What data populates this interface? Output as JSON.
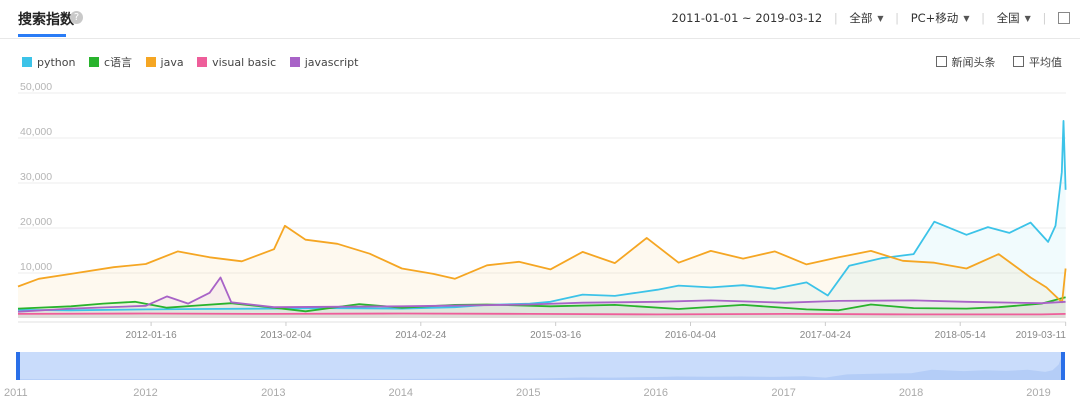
{
  "header": {
    "title": "搜索指数",
    "help_icon": "question-icon",
    "date_range": "2011-01-01 ~ 2019-03-12",
    "source_filter": "全部",
    "device_filter": "PC+移动",
    "region_filter": "全国",
    "export_icon": "external-link-icon"
  },
  "legend": [
    {
      "name": "python",
      "color": "#3cc3e8"
    },
    {
      "name": "c语言",
      "color": "#29b32d"
    },
    {
      "name": "java",
      "color": "#f5a623"
    },
    {
      "name": "visual basic",
      "color": "#ee5e9a"
    },
    {
      "name": "javascript",
      "color": "#a863c7"
    }
  ],
  "options": {
    "news_label": "新闻头条",
    "average_label": "平均值"
  },
  "chart_data": {
    "type": "line",
    "title": "",
    "xlabel": "",
    "ylabel": "",
    "ylim": [
      0,
      50000
    ],
    "y_ticks": [
      "50,000",
      "40,000",
      "30,000",
      "20,000",
      "10,000"
    ],
    "x_range": [
      "2011-01-01",
      "2019-03-12"
    ],
    "x_ticks": [
      "2012-01-16",
      "2013-02-04",
      "2014-02-24",
      "2015-03-16",
      "2016-04-04",
      "2017-04-24",
      "2018-05-14",
      "2019-03-11"
    ],
    "grid": true,
    "series": [
      {
        "name": "python",
        "color": "#3cc3e8",
        "points": [
          [
            "2011-01-01",
            1800
          ],
          [
            "2011-06-01",
            1700
          ],
          [
            "2012-01-01",
            1900
          ],
          [
            "2012-06-01",
            2000
          ],
          [
            "2013-01-01",
            2100
          ],
          [
            "2013-06-01",
            2200
          ],
          [
            "2014-01-01",
            2100
          ],
          [
            "2014-06-01",
            2400
          ],
          [
            "2014-09-01",
            2900
          ],
          [
            "2015-01-01",
            3200
          ],
          [
            "2015-03-01",
            3600
          ],
          [
            "2015-06-01",
            5200
          ],
          [
            "2015-09-01",
            4900
          ],
          [
            "2016-01-01",
            6300
          ],
          [
            "2016-03-01",
            7200
          ],
          [
            "2016-06-01",
            6800
          ],
          [
            "2016-09-01",
            7300
          ],
          [
            "2016-12-01",
            6500
          ],
          [
            "2017-03-01",
            7900
          ],
          [
            "2017-05-01",
            5000
          ],
          [
            "2017-07-01",
            11600
          ],
          [
            "2017-10-01",
            13300
          ],
          [
            "2018-01-01",
            14200
          ],
          [
            "2018-03-01",
            21400
          ],
          [
            "2018-06-01",
            18500
          ],
          [
            "2018-08-01",
            20200
          ],
          [
            "2018-10-01",
            18900
          ],
          [
            "2018-12-01",
            21200
          ],
          [
            "2019-01-20",
            16900
          ],
          [
            "2019-02-10",
            20500
          ],
          [
            "2019-02-28",
            32400
          ],
          [
            "2019-03-05",
            43800
          ],
          [
            "2019-03-11",
            28500
          ]
        ]
      },
      {
        "name": "c语言",
        "color": "#29b32d",
        "points": [
          [
            "2011-01-01",
            2100
          ],
          [
            "2011-06-01",
            2600
          ],
          [
            "2011-09-01",
            3200
          ],
          [
            "2011-12-01",
            3600
          ],
          [
            "2012-03-01",
            2300
          ],
          [
            "2012-06-01",
            2800
          ],
          [
            "2012-09-01",
            3300
          ],
          [
            "2013-01-01",
            2300
          ],
          [
            "2013-04-01",
            1500
          ],
          [
            "2013-09-01",
            3100
          ],
          [
            "2014-01-01",
            2300
          ],
          [
            "2014-06-01",
            2900
          ],
          [
            "2014-09-01",
            3000
          ],
          [
            "2015-03-01",
            2600
          ],
          [
            "2015-09-01",
            2900
          ],
          [
            "2016-03-01",
            2000
          ],
          [
            "2016-09-01",
            2900
          ],
          [
            "2017-03-01",
            1900
          ],
          [
            "2017-06-01",
            1700
          ],
          [
            "2017-09-01",
            3000
          ],
          [
            "2018-01-01",
            2200
          ],
          [
            "2018-06-01",
            2100
          ],
          [
            "2018-09-01",
            2400
          ],
          [
            "2019-01-01",
            3200
          ],
          [
            "2019-03-11",
            4600
          ]
        ]
      },
      {
        "name": "java",
        "color": "#f5a623",
        "points": [
          [
            "2011-01-01",
            7000
          ],
          [
            "2011-03-01",
            8700
          ],
          [
            "2011-06-01",
            9800
          ],
          [
            "2011-10-01",
            11300
          ],
          [
            "2012-01-01",
            12000
          ],
          [
            "2012-04-01",
            14800
          ],
          [
            "2012-07-01",
            13500
          ],
          [
            "2012-10-01",
            12600
          ],
          [
            "2013-01-01",
            15300
          ],
          [
            "2013-02-01",
            20500
          ],
          [
            "2013-04-01",
            17400
          ],
          [
            "2013-07-01",
            16500
          ],
          [
            "2013-10-01",
            14300
          ],
          [
            "2014-01-01",
            11000
          ],
          [
            "2014-04-01",
            9800
          ],
          [
            "2014-06-01",
            8700
          ],
          [
            "2014-09-01",
            11700
          ],
          [
            "2014-12-01",
            12500
          ],
          [
            "2015-03-01",
            10800
          ],
          [
            "2015-06-01",
            14700
          ],
          [
            "2015-09-01",
            12200
          ],
          [
            "2015-12-01",
            17800
          ],
          [
            "2016-03-01",
            12300
          ],
          [
            "2016-06-01",
            14900
          ],
          [
            "2016-09-01",
            13200
          ],
          [
            "2016-12-01",
            14800
          ],
          [
            "2017-03-01",
            11900
          ],
          [
            "2017-06-01",
            13500
          ],
          [
            "2017-09-01",
            14900
          ],
          [
            "2017-12-01",
            12700
          ],
          [
            "2018-03-01",
            12300
          ],
          [
            "2018-06-01",
            11000
          ],
          [
            "2018-09-01",
            14200
          ],
          [
            "2018-12-01",
            9000
          ],
          [
            "2019-01-15",
            6800
          ],
          [
            "2019-03-01",
            3500
          ],
          [
            "2019-03-11",
            11000
          ]
        ]
      },
      {
        "name": "visual basic",
        "color": "#ee5e9a",
        "points": [
          [
            "2011-01-01",
            900
          ],
          [
            "2012-01-01",
            1000
          ],
          [
            "2013-01-01",
            900
          ],
          [
            "2014-01-01",
            1000
          ],
          [
            "2015-01-01",
            900
          ],
          [
            "2016-01-01",
            800
          ],
          [
            "2017-01-01",
            900
          ],
          [
            "2018-01-01",
            800
          ],
          [
            "2019-01-01",
            800
          ],
          [
            "2019-03-11",
            900
          ]
        ]
      },
      {
        "name": "javascript",
        "color": "#a863c7",
        "points": [
          [
            "2011-01-01",
            1400
          ],
          [
            "2011-06-01",
            2100
          ],
          [
            "2012-01-01",
            2700
          ],
          [
            "2012-03-01",
            4800
          ],
          [
            "2012-05-01",
            3200
          ],
          [
            "2012-07-01",
            5600
          ],
          [
            "2012-08-01",
            9000
          ],
          [
            "2012-09-01",
            3500
          ],
          [
            "2013-01-01",
            2400
          ],
          [
            "2014-01-01",
            2600
          ],
          [
            "2015-01-01",
            3000
          ],
          [
            "2015-06-01",
            3400
          ],
          [
            "2016-01-01",
            3600
          ],
          [
            "2016-06-01",
            3900
          ],
          [
            "2017-01-01",
            3400
          ],
          [
            "2017-06-01",
            3800
          ],
          [
            "2018-01-01",
            3900
          ],
          [
            "2018-06-01",
            3600
          ],
          [
            "2019-01-01",
            3300
          ],
          [
            "2019-03-11",
            3600
          ]
        ]
      }
    ]
  },
  "navigator": {
    "year_labels": [
      "2011",
      "2012",
      "2013",
      "2014",
      "2015",
      "2016",
      "2017",
      "2018",
      "2019"
    ]
  }
}
